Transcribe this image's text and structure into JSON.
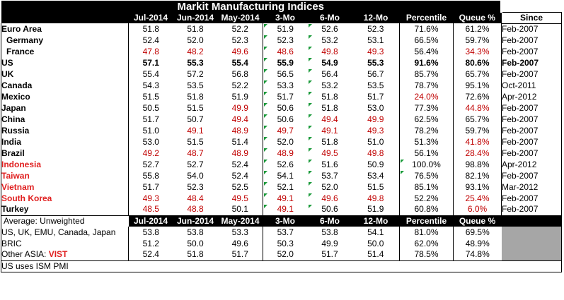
{
  "title": "Markit  Manufacturing Indices",
  "columns": [
    "Jul-2014",
    "Jun-2014",
    "May-2014",
    "3-Mo",
    "6-Mo",
    "12-Mo",
    "Percentile",
    "Queue %",
    "Since"
  ],
  "colors": {
    "red": "#c00000",
    "red_name": "#e02020",
    "flag": "#1a9a3a",
    "gray": "#a6a6a6"
  },
  "rows": [
    {
      "name": "Euro Area",
      "v": [
        "51.8",
        "51.8",
        "52.2",
        "51.9",
        "52.6",
        "52.3",
        "71.6%",
        "61.2%",
        "Feb-2007"
      ]
    },
    {
      "name": "Germany",
      "v": [
        "52.4",
        "52.0",
        "52.3",
        "52.3",
        "53.2",
        "53.1",
        "66.5%",
        "59.7%",
        "Feb-2007"
      ]
    },
    {
      "name": "France",
      "v": [
        "47.8",
        "48.2",
        "49.6",
        "48.6",
        "49.8",
        "49.3",
        "56.4%",
        "34.3%",
        "Feb-2007"
      ]
    },
    {
      "name": "US",
      "v": [
        "57.1",
        "55.3",
        "55.4",
        "55.9",
        "54.9",
        "55.3",
        "91.6%",
        "80.6%",
        "Feb-2007"
      ]
    },
    {
      "name": "UK",
      "v": [
        "55.4",
        "57.2",
        "56.8",
        "56.5",
        "56.4",
        "56.7",
        "85.7%",
        "65.7%",
        "Feb-2007"
      ]
    },
    {
      "name": "Canada",
      "v": [
        "54.3",
        "53.5",
        "52.2",
        "53.3",
        "53.2",
        "53.5",
        "78.7%",
        "95.1%",
        "Oct-2011"
      ]
    },
    {
      "name": "Mexico",
      "v": [
        "51.5",
        "51.8",
        "51.9",
        "51.7",
        "51.8",
        "51.7",
        "24.0%",
        "72.6%",
        "Apr-2012"
      ]
    },
    {
      "name": "Japan",
      "v": [
        "50.5",
        "51.5",
        "49.9",
        "50.6",
        "51.8",
        "53.0",
        "77.3%",
        "44.8%",
        "Feb-2007"
      ]
    },
    {
      "name": "China",
      "v": [
        "51.7",
        "50.7",
        "49.4",
        "50.6",
        "49.4",
        "49.9",
        "62.5%",
        "65.7%",
        "Feb-2007"
      ]
    },
    {
      "name": "Russia",
      "v": [
        "51.0",
        "49.1",
        "48.9",
        "49.7",
        "49.1",
        "49.3",
        "78.2%",
        "59.7%",
        "Feb-2007"
      ]
    },
    {
      "name": "India",
      "v": [
        "53.0",
        "51.5",
        "51.4",
        "52.0",
        "51.8",
        "51.0",
        "51.3%",
        "41.8%",
        "Feb-2007"
      ]
    },
    {
      "name": "Brazil",
      "v": [
        "49.2",
        "48.7",
        "48.9",
        "48.9",
        "49.5",
        "49.8",
        "56.1%",
        "28.4%",
        "Feb-2007"
      ]
    },
    {
      "name": "Indonesia",
      "v": [
        "52.7",
        "52.7",
        "52.4",
        "52.6",
        "51.6",
        "50.9",
        "100.0%",
        "98.8%",
        "Apr-2012"
      ]
    },
    {
      "name": "Taiwan",
      "v": [
        "55.8",
        "54.0",
        "52.4",
        "54.1",
        "53.7",
        "53.4",
        "76.5%",
        "82.1%",
        "Feb-2007"
      ]
    },
    {
      "name": "Vietnam",
      "v": [
        "51.7",
        "52.3",
        "52.5",
        "52.1",
        "52.0",
        "51.5",
        "85.1%",
        "93.1%",
        "Mar-2012"
      ]
    },
    {
      "name": "South Korea",
      "v": [
        "49.3",
        "48.4",
        "49.5",
        "49.1",
        "49.6",
        "49.8",
        "52.2%",
        "25.4%",
        "Feb-2007"
      ]
    },
    {
      "name": "Turkey",
      "v": [
        "48.5",
        "48.8",
        "50.1",
        "49.1",
        "50.6",
        "51.9",
        "60.8%",
        "6.0%",
        "Feb-2007"
      ]
    }
  ],
  "average": {
    "label": "Average: Unweighted",
    "columns": [
      "Jul-2014",
      "Jun-2014",
      "May-2014",
      "3-Mo",
      "6-Mo",
      "12-Mo",
      "Percentile",
      "Queue %"
    ],
    "rows": [
      {
        "name": "US, UK, EMU, Canada, Japan",
        "v": [
          "53.8",
          "53.8",
          "53.3",
          "53.7",
          "53.8",
          "54.1",
          "81.0%",
          "69.5%"
        ]
      },
      {
        "name": "BRIC",
        "v": [
          "51.2",
          "50.0",
          "49.6",
          "50.3",
          "49.9",
          "50.0",
          "62.0%",
          "48.9%"
        ]
      },
      {
        "name_prefix": "Other ASIA: ",
        "name_suffix": "VIST",
        "v": [
          "52.4",
          "51.8",
          "51.7",
          "52.0",
          "51.7",
          "51.4",
          "78.5%",
          "74.8%"
        ]
      }
    ]
  },
  "footnote": "US uses ISM PMI"
}
